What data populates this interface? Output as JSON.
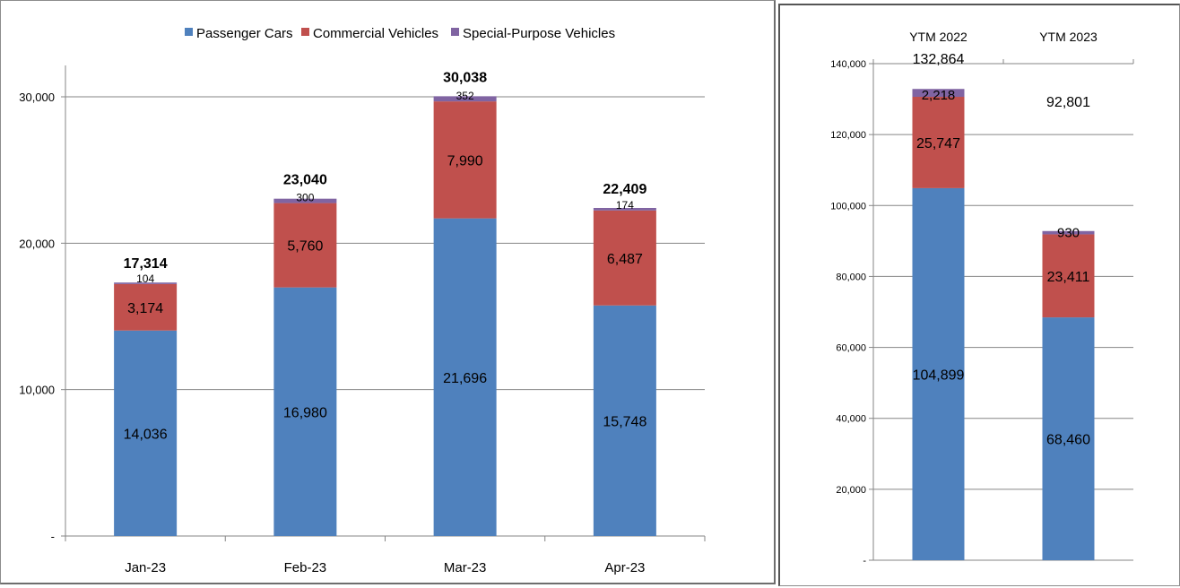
{
  "colors": {
    "passenger": "#4f81bd",
    "commercial": "#c0504d",
    "special": "#8064a2",
    "grid": "#868686",
    "axis": "#868686"
  },
  "chart_data": [
    {
      "type": "bar",
      "stacked": true,
      "categories": [
        "Jan-23",
        "Feb-23",
        "Mar-23",
        "Apr-23"
      ],
      "series": [
        {
          "name": "Passenger Cars",
          "values": [
            14036,
            16980,
            21696,
            15748
          ]
        },
        {
          "name": "Commercial Vehicles",
          "values": [
            3174,
            5760,
            7990,
            6487
          ]
        },
        {
          "name": "Special-Purpose Vehicles",
          "values": [
            104,
            300,
            352,
            174
          ]
        }
      ],
      "totals": [
        "17,314",
        "23,040",
        "30,038",
        "22,409"
      ],
      "ylim": [
        0,
        30000
      ],
      "yticks": [
        "-",
        "10,000",
        "20,000",
        "30,000"
      ],
      "grid": true,
      "legend": "top"
    },
    {
      "type": "bar",
      "stacked": true,
      "categories": [
        "YTM 2022",
        "YTM 2023"
      ],
      "series": [
        {
          "name": "Passenger Cars",
          "values": [
            104899,
            68460
          ]
        },
        {
          "name": "Commercial Vehicles",
          "values": [
            25747,
            23411
          ]
        },
        {
          "name": "Special-Purpose Vehicles",
          "values": [
            2218,
            930
          ]
        }
      ],
      "totals": [
        "132,864",
        "92,801"
      ],
      "ylim": [
        0,
        140000
      ],
      "yticks": [
        "-",
        "20,000",
        "40,000",
        "60,000",
        "80,000",
        "100,000",
        "120,000",
        "140,000"
      ],
      "grid": true,
      "xaxis_position": "top"
    }
  ]
}
